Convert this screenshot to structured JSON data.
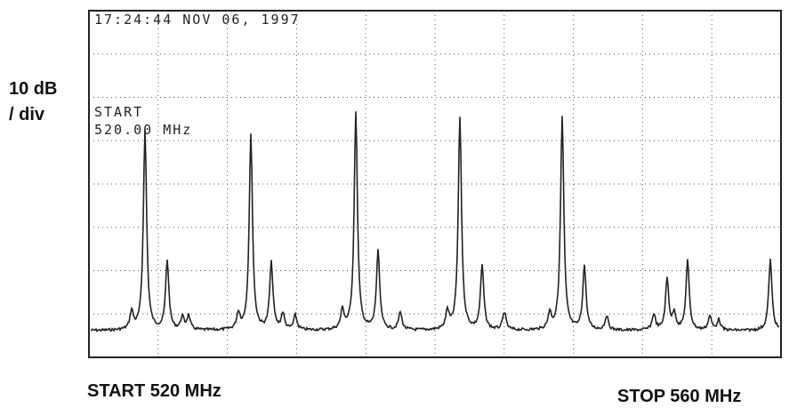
{
  "screen": {
    "timestamp": "17:24:44 NOV 06, 1997",
    "marker_label": "START",
    "marker_value": "520.00 MHz"
  },
  "scale": {
    "line1": "10 dB",
    "line2": "/ div"
  },
  "footer": {
    "start": "START 520 MHz",
    "stop": "STOP 560 MHz"
  }
}
